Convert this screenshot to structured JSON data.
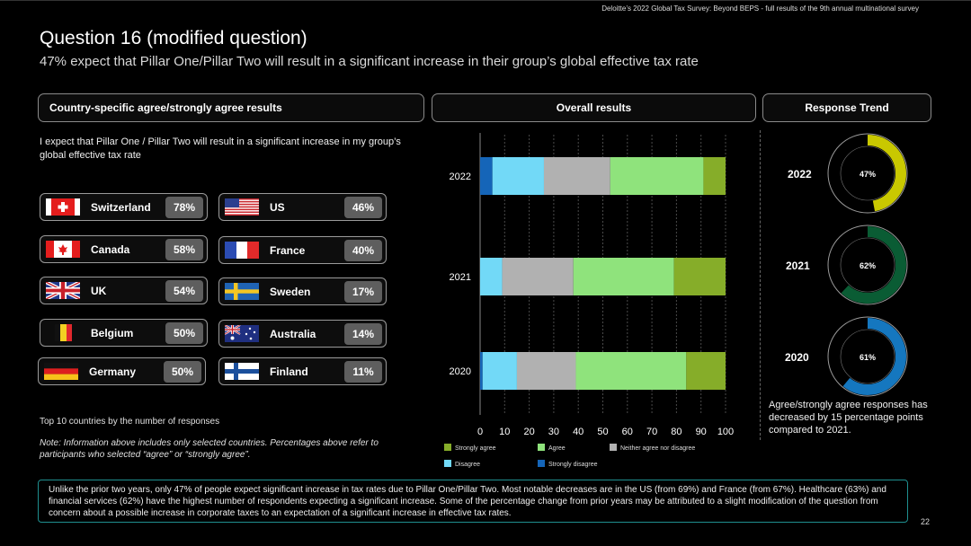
{
  "header": {
    "source": "Deloitte’s 2022 Global Tax Survey: Beyond BEPS  - full results of the 9th annual multinational survey",
    "title": "Question 16 (modified question)",
    "subtitle": "47% expect that Pillar One/Pillar Two will result in a significant increase in their group’s global effective tax rate"
  },
  "left_panel": {
    "header": "Country-specific agree/strongly agree results",
    "statement": "I expect that Pillar One / Pillar Two will result in a significant increase in my group’s global effective tax rate",
    "countries": [
      {
        "name": "Switzerland",
        "pct": "78%",
        "flag": "switzerland-flag"
      },
      {
        "name": "US",
        "pct": "46%",
        "flag": "us-flag"
      },
      {
        "name": "Canada",
        "pct": "58%",
        "flag": "canada-flag"
      },
      {
        "name": "France",
        "pct": "40%",
        "flag": "france-flag"
      },
      {
        "name": "UK",
        "pct": "54%",
        "flag": "uk-flag"
      },
      {
        "name": "Sweden",
        "pct": "17%",
        "flag": "sweden-flag"
      },
      {
        "name": "Belgium",
        "pct": "50%",
        "flag": "belgium-flag"
      },
      {
        "name": "Australia",
        "pct": "14%",
        "flag": "australia-flag"
      },
      {
        "name": "Germany",
        "pct": "50%",
        "flag": "germany-flag"
      },
      {
        "name": "Finland",
        "pct": "11%",
        "flag": "finland-flag"
      }
    ],
    "top10": "Top 10 countries by the number of responses",
    "note": "Note: Information above includes only selected countries. Percentages above refer to participants who selected “agree” or “strongly agree”."
  },
  "mid_panel": {
    "header": "Overall results"
  },
  "right_panel": {
    "header": "Response Trend",
    "trend": [
      {
        "year": "2022",
        "label": "47%",
        "value": 47,
        "color": "#c9c800"
      },
      {
        "year": "2021",
        "label": "62%",
        "value": 62,
        "color": "#0a5c34"
      },
      {
        "year": "2020",
        "label": "61%",
        "value": 61,
        "color": "#1577bf"
      }
    ],
    "text": "Agree/strongly agree responses has decreased by 15 percentage points compared to 2021."
  },
  "footer": "Unlike the prior two years, only 47% of people expect significant increase in tax rates due to Pillar One/Pillar Two. Most notable decreases are in the US (from 69%) and France (from 67%). Healthcare (63%) and financial services (62%) have the highest number of respondents expecting a significant increase. Some of the percentage change from prior years may be attributed to a slight modification of the question from concern about a possible increase in corporate taxes to an expectation of a significant increase in effective tax rates.",
  "page_number": "22",
  "chart_data": {
    "type": "bar",
    "orientation": "horizontal",
    "stacked": true,
    "title": "Overall results",
    "categories": [
      "2022",
      "2021",
      "2020"
    ],
    "xlim": [
      0,
      100
    ],
    "xticks": [
      "0",
      "10",
      "20",
      "30",
      "40",
      "50",
      "60",
      "70",
      "80",
      "90",
      "100"
    ],
    "series": [
      {
        "name": "Strongly disagree",
        "color": "#1565b8",
        "values": [
          5,
          0,
          1
        ]
      },
      {
        "name": "Disagree",
        "color": "#72d9f7",
        "values": [
          21,
          9,
          14
        ]
      },
      {
        "name": "Neither agree nor disagree",
        "color": "#b1b1b1",
        "values": [
          27,
          29,
          24
        ]
      },
      {
        "name": "Agree",
        "color": "#8fe37c",
        "values": [
          38,
          41,
          45
        ]
      },
      {
        "name": "Strongly agree",
        "color": "#86ad29",
        "values": [
          9,
          21,
          16
        ]
      }
    ],
    "legend": [
      {
        "name": "Strongly agree",
        "color": "#86ad29"
      },
      {
        "name": "Agree",
        "color": "#8fe37c"
      },
      {
        "name": "Neither agree nor disagree",
        "color": "#b1b1b1"
      },
      {
        "name": "Disagree",
        "color": "#72d9f7"
      },
      {
        "name": "Strongly disagree",
        "color": "#1565b8"
      }
    ]
  }
}
